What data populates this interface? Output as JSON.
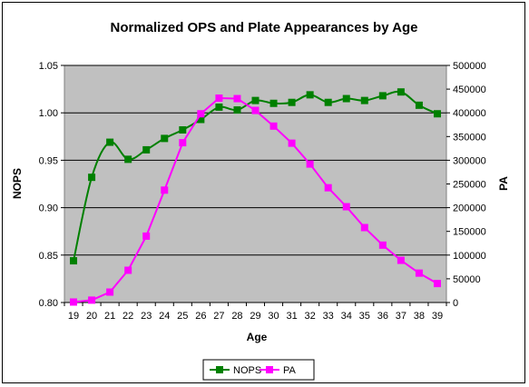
{
  "chart_data": {
    "type": "line",
    "title": "Normalized OPS and Plate Appearances by Age",
    "xlabel": "Age",
    "ylabel_left": "NOPS",
    "ylabel_right": "PA",
    "x": [
      19,
      20,
      21,
      22,
      23,
      24,
      25,
      26,
      27,
      28,
      29,
      30,
      31,
      32,
      33,
      34,
      35,
      36,
      37,
      38,
      39
    ],
    "y_left_range": [
      0.8,
      1.05
    ],
    "y_left_ticks": [
      "0.80",
      "0.85",
      "0.90",
      "0.95",
      "1.00",
      "1.05"
    ],
    "y_right_range": [
      0,
      500000
    ],
    "y_right_ticks": [
      "0",
      "50000",
      "100000",
      "150000",
      "200000",
      "250000",
      "300000",
      "350000",
      "400000",
      "450000",
      "500000"
    ],
    "grid": "horizontal",
    "legend_position": "bottom",
    "plot_background": "#c0c0c0",
    "series": [
      {
        "name": "NOPS",
        "axis": "left",
        "color": "#008000",
        "marker": "square",
        "smooth": true,
        "values": [
          0.844,
          0.932,
          0.969,
          0.951,
          0.961,
          0.973,
          0.982,
          0.993,
          1.006,
          1.003,
          1.013,
          1.01,
          1.011,
          1.019,
          1.011,
          1.015,
          1.013,
          1.018,
          1.022,
          1.008,
          0.999
        ]
      },
      {
        "name": "PA",
        "axis": "right",
        "color": "#ff00ff",
        "marker": "square",
        "smooth": false,
        "values": [
          1000,
          5000,
          22000,
          68000,
          140000,
          237000,
          337000,
          398000,
          431000,
          430000,
          405000,
          372000,
          336000,
          292000,
          242000,
          202000,
          158000,
          121000,
          89000,
          62000,
          40000
        ]
      }
    ]
  }
}
